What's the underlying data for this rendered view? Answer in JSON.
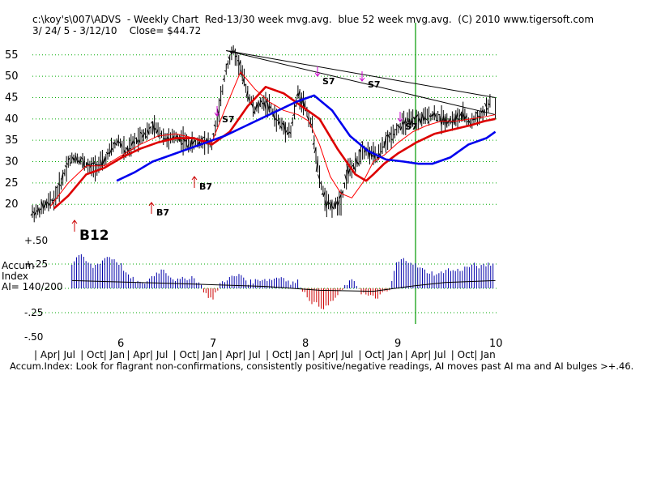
{
  "header": {
    "line1": "c:\\koy's\\007\\ADVS  - Weekly Chart  Red-13/30 week mvg.avg.  blue 52 week mvg.avg.  (C) 2010 www.tigersoft.com",
    "line2": "3/ 24/ 5 - 3/12/10    Close= $44.72"
  },
  "accum_label": {
    "l1": "Accum",
    "l2": "Index",
    "l3": "AI= 140/200"
  },
  "footer": "Accum.Index: Look for flagrant non-confirmations, consistently positive/negative readings, AI moves past AI ma and AI bulges >+.46.",
  "colors": {
    "price_bars": "#000000",
    "ma13": "#ff0000",
    "ma30": "#dd0000",
    "ma52": "#0000ee",
    "accum_pos": "#0000aa",
    "accum_neg": "#cc0000",
    "signal_sell": "#cc00cc",
    "signal_buy": "#cc0000",
    "vertical_marker": "#009900",
    "grid": "#00aa00"
  },
  "chart_data": [
    {
      "type": "line",
      "title": "ADVS Weekly Chart",
      "y_ticks": [
        20,
        25,
        30,
        35,
        40,
        45,
        50,
        55
      ],
      "ylim": [
        17,
        58
      ],
      "grid": true,
      "x_year_labels": [
        "6",
        "7",
        "8",
        "9",
        "10"
      ],
      "x_month_labels": [
        "Apr",
        "Jul",
        "Oct",
        "Jan",
        "Apr",
        "Jul",
        "Oct",
        "Jan",
        "Apr",
        "Jul",
        "Oct",
        "Jan",
        "Apr",
        "Jul",
        "Oct",
        "Jan",
        "Apr",
        "Jul",
        "Oct",
        "Jan"
      ],
      "xlim": [
        0,
        260
      ],
      "price_series": {
        "x": [
          0,
          4,
          8,
          12,
          16,
          20,
          24,
          28,
          32,
          36,
          40,
          44,
          48,
          52,
          56,
          60,
          64,
          68,
          72,
          76,
          80,
          84,
          88,
          92,
          96,
          100,
          104,
          108,
          112,
          116,
          120,
          124,
          128,
          132,
          136,
          140,
          144,
          148,
          152,
          156,
          160,
          164,
          168,
          172,
          176,
          180,
          184,
          188,
          192,
          196,
          200,
          204,
          208,
          212,
          216,
          220,
          224,
          228,
          232,
          236,
          240,
          244,
          248,
          252,
          256
        ],
        "values": [
          18,
          18.5,
          20,
          21,
          25,
          30,
          31,
          30,
          28.5,
          29,
          30,
          33,
          35,
          32,
          34,
          36,
          37,
          38,
          36.5,
          35,
          36,
          35,
          34,
          34.5,
          35,
          34,
          42,
          52,
          56,
          52,
          46,
          42,
          44,
          43,
          40,
          38,
          37,
          46,
          43,
          38,
          26,
          20,
          19.5,
          21,
          28,
          29,
          33,
          32,
          31,
          34,
          36,
          38,
          39,
          39.5,
          40,
          40.5,
          41,
          40,
          39.5,
          40,
          41,
          39,
          40.5,
          41.5,
          44.7
        ]
      },
      "series": [
        {
          "name": "Red-13 week mvg.avg.",
          "x": [
            10,
            20,
            30,
            40,
            50,
            60,
            70,
            80,
            90,
            100,
            108,
            116,
            124,
            132,
            140,
            148,
            154,
            160,
            166,
            172,
            178,
            184,
            190,
            196,
            204,
            212,
            220,
            228,
            236,
            244,
            252,
            258
          ],
          "values": [
            19.5,
            25,
            29,
            29,
            31.5,
            34,
            36,
            36.5,
            35.5,
            34.5,
            43,
            51,
            47,
            44,
            42,
            41,
            39.5,
            34,
            26.5,
            22.5,
            21.5,
            25,
            30,
            31.5,
            34.5,
            37,
            38.5,
            39.5,
            39.5,
            40,
            40.5,
            41
          ]
        },
        {
          "name": "Red-30 week mvg.avg.",
          "x": [
            12,
            20,
            30,
            40,
            50,
            60,
            70,
            80,
            90,
            100,
            110,
            120,
            130,
            140,
            150,
            160,
            170,
            180,
            186,
            190,
            196,
            204,
            214,
            224,
            234,
            244,
            252,
            258
          ],
          "values": [
            19,
            22,
            27,
            28.5,
            31,
            33,
            34.5,
            35.5,
            35.5,
            34,
            37,
            43,
            47.5,
            46,
            43,
            40,
            33,
            27,
            25.5,
            27,
            29.5,
            32,
            34.5,
            36.5,
            37.5,
            38.5,
            39.5,
            40
          ]
        },
        {
          "name": "blue 52 week mvg.avg.",
          "x": [
            47,
            57,
            67,
            77,
            87,
            97,
            107,
            117,
            127,
            137,
            147,
            157,
            167,
            177,
            187,
            197,
            207,
            215,
            223,
            233,
            243,
            253,
            258
          ],
          "values": [
            25.5,
            27.5,
            30,
            31.5,
            33,
            34.5,
            36,
            38,
            40,
            42,
            44,
            45.5,
            42,
            36,
            32.5,
            30.5,
            30,
            29.5,
            29.5,
            31,
            34,
            35.5,
            37
          ]
        }
      ],
      "trendlines": [
        {
          "from": [
            108,
            56
          ],
          "to": [
            258,
            41
          ]
        },
        {
          "from": [
            108,
            56
          ],
          "to": [
            258,
            45
          ]
        }
      ],
      "signals": [
        {
          "label": "B12",
          "type": "buy",
          "x": 22
        },
        {
          "label": "B7",
          "type": "buy",
          "x": 66
        },
        {
          "label": "B7",
          "type": "buy",
          "x": 90
        },
        {
          "label": "S7",
          "type": "sell",
          "x": 93
        },
        {
          "label": "S7",
          "type": "sell",
          "x": 147
        },
        {
          "label": "S7",
          "type": "sell",
          "x": 169
        },
        {
          "label": "S7",
          "type": "sell",
          "x": 191
        }
      ]
    },
    {
      "type": "bar",
      "title": "Accum Index",
      "y_ticks": [
        "+.50",
        "+.25",
        "-.25",
        "-.50"
      ],
      "ylim": [
        -0.5,
        0.5
      ],
      "x_range": [
        22,
        258
      ],
      "description_values": [
        0.25,
        0.35,
        0.28,
        0.22,
        0.27,
        0.33,
        0.3,
        0.24,
        0.12,
        0.08,
        0.04,
        0.1,
        0.16,
        0.2,
        0.12,
        0.08,
        0.1,
        0.12,
        0.06,
        -0.06,
        -0.12,
        0.05,
        0.1,
        0.12,
        0.14,
        0.06,
        0.08,
        0.1,
        0.09,
        0.11,
        0.12,
        0.05,
        0.07,
        -0.05,
        -0.14,
        -0.18,
        -0.2,
        -0.12,
        -0.05,
        0.05,
        0.08,
        -0.04,
        -0.08,
        -0.1,
        -0.06,
        -0.02,
        0.26,
        0.3,
        0.28,
        0.22,
        0.18,
        0.16,
        0.14,
        0.2,
        0.18,
        0.19,
        0.22,
        0.24,
        0.22,
        0.25
      ],
      "ma": {
        "x": [
          22,
          80,
          130,
          160,
          190,
          210,
          230,
          258
        ],
        "values": [
          0.08,
          0.05,
          0.02,
          -0.02,
          -0.03,
          0.02,
          0.06,
          0.08
        ]
      }
    }
  ],
  "labels": {
    "plus50": "+.50",
    "plus25": "+.25",
    "minus25": "-.25",
    "minus50": "-.50"
  }
}
